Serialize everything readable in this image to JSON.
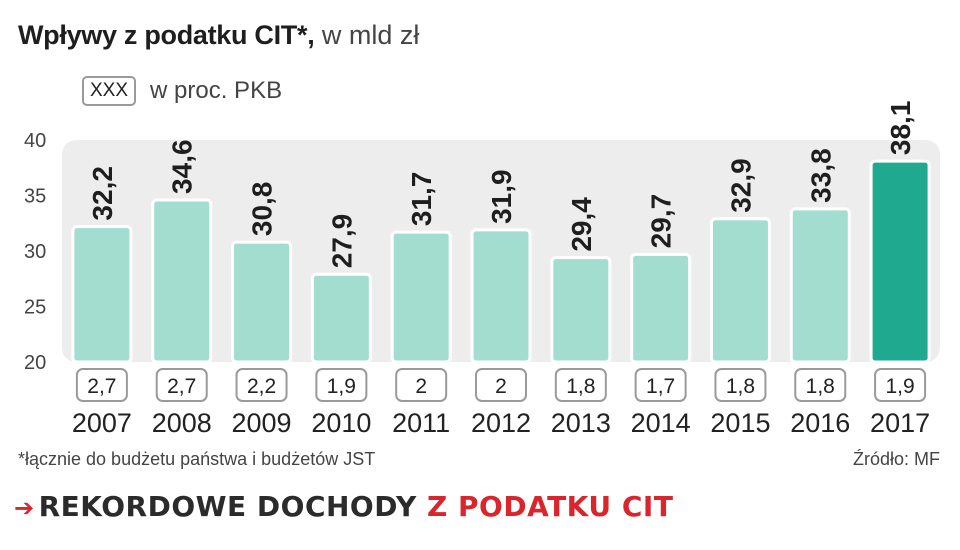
{
  "title": {
    "bold": "Wpływy z podatku CIT*,",
    "rest": " w mld zł"
  },
  "legend": {
    "box_label": "XXX",
    "text": "w proc. PKB"
  },
  "chart_data": {
    "type": "bar",
    "categories": [
      "2007",
      "2008",
      "2009",
      "2010",
      "2011",
      "2012",
      "2013",
      "2014",
      "2015",
      "2016",
      "2017"
    ],
    "values": [
      32.2,
      34.6,
      30.8,
      27.9,
      31.7,
      31.9,
      29.4,
      29.7,
      32.9,
      33.8,
      38.1
    ],
    "value_labels": [
      "32,2",
      "34,6",
      "30,8",
      "27,9",
      "31,7",
      "31,9",
      "29,4",
      "29,7",
      "32,9",
      "33,8",
      "38,1"
    ],
    "pkb_labels": [
      "2,7",
      "2,7",
      "2,2",
      "1,9",
      "2",
      "2",
      "1,8",
      "1,7",
      "1,8",
      "1,8",
      "1,9"
    ],
    "ylim": [
      20,
      40
    ],
    "yticks": [
      "20",
      "25",
      "30",
      "35",
      "40"
    ],
    "highlight_index": 10,
    "colors": {
      "bar": "#a3ddd0",
      "bar_highlight": "#1fa98f",
      "bar_stroke": "#ffffff",
      "plot_bg": "#ededed"
    }
  },
  "footnote": "*łącznie do budżetu państwa i budżetów JST",
  "source": "Źródło: MF",
  "headline": {
    "arrow": "➔",
    "dark": "REKORDOWE DOCHODY",
    "red": "Z PODATKU CIT"
  }
}
